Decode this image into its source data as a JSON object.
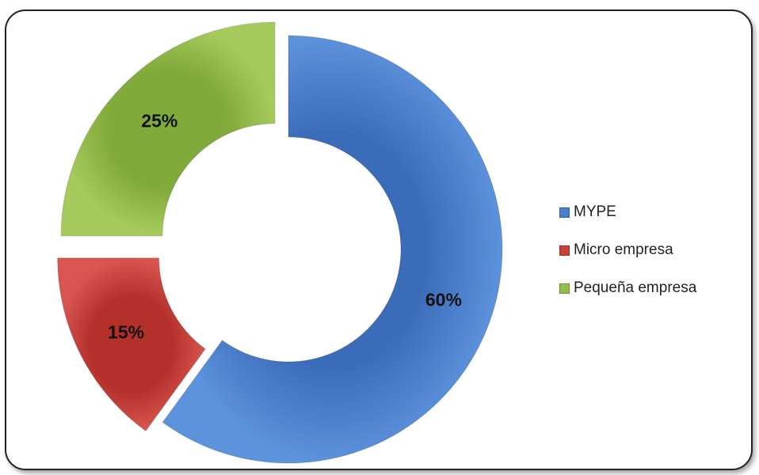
{
  "chart_data": {
    "type": "pie",
    "variant": "donut-exploded",
    "series": [
      {
        "name": "MYPE",
        "value": 60,
        "label": "60%",
        "color": "#4a7fcf"
      },
      {
        "name": "Micro empresa",
        "value": 15,
        "label": "15%",
        "color": "#c9403a"
      },
      {
        "name": "Pequeña empresa",
        "value": 25,
        "label": "25%",
        "color": "#94be4a"
      }
    ],
    "legend": {
      "position": "right"
    }
  }
}
